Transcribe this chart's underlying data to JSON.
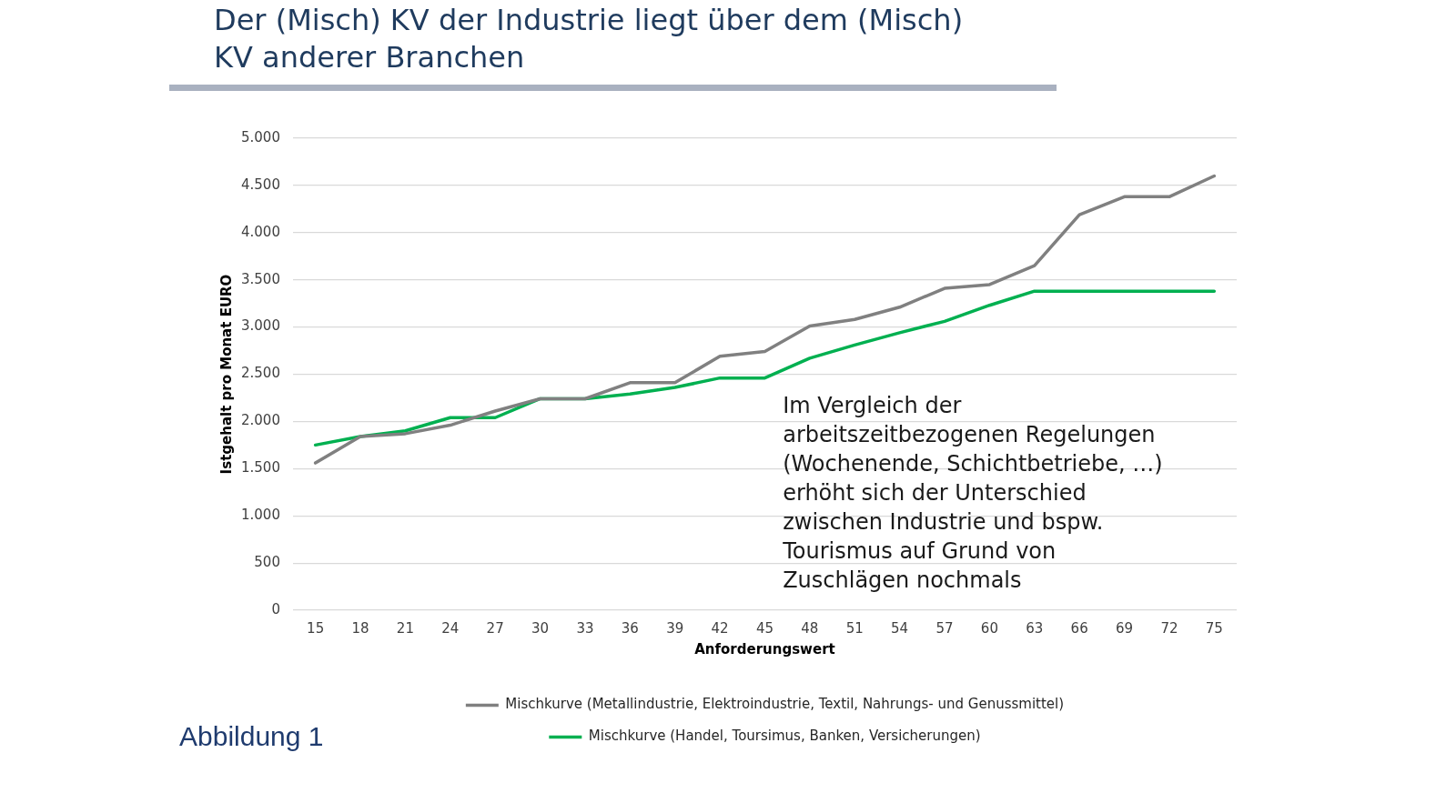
{
  "chart_data": {
    "type": "line",
    "title": "Der (Misch) KV der Industrie liegt über dem (Misch) KV anderer Branchen",
    "xlabel": "Anforderungswert",
    "ylabel": "Istgehalt pro Monat EURO",
    "categories": [
      "15",
      "18",
      "21",
      "24",
      "27",
      "30",
      "33",
      "36",
      "39",
      "42",
      "45",
      "48",
      "51",
      "54",
      "57",
      "60",
      "63",
      "66",
      "69",
      "72",
      "75"
    ],
    "series": [
      {
        "name": "Mischkurve (Metallindustrie, Elektroindustrie, Textil, Nahrungs- und Genussmittel)",
        "color": "#808080",
        "values": [
          1560,
          1840,
          1870,
          1960,
          2110,
          2240,
          2240,
          2410,
          2410,
          2690,
          2740,
          3010,
          3080,
          3210,
          3410,
          3450,
          3650,
          4190,
          4380,
          4380,
          4600
        ]
      },
      {
        "name": "Mischkurve (Handel, Toursimus, Banken, Versicherungen)",
        "color": "#00b050",
        "values": [
          1750,
          1840,
          1900,
          2040,
          2040,
          2240,
          2240,
          2290,
          2360,
          2460,
          2460,
          2670,
          2810,
          2940,
          3060,
          3230,
          3380,
          3380,
          3380,
          3380,
          3380
        ]
      }
    ],
    "ylim": [
      0,
      5000
    ],
    "yticks": [
      0,
      500,
      {
        "value": 1000,
        "label": "1.000"
      },
      {
        "value": 1500,
        "label": "1.500"
      },
      {
        "value": 2000,
        "label": "2.000"
      },
      {
        "value": 2500,
        "label": "2.500"
      },
      {
        "value": 3000,
        "label": "3.000"
      },
      {
        "value": 3500,
        "label": "3.500"
      },
      {
        "value": 4000,
        "label": "4.000"
      },
      {
        "value": 4500,
        "label": "4.500"
      },
      {
        "value": 5000,
        "label": "5.000"
      }
    ],
    "grid": "y",
    "legend": "bottom",
    "marker": "none",
    "annotations": [
      "Im Vergleich der\narbeitszeitbezogenen Regelungen\n(Wochenende, Schichtbetriebe, …)\nerhöht sich der Unterschied\nzwischen Industrie und bspw.\nTourismus auf Grund von\nZuschlägen nochmals",
      "Abbildung 1"
    ]
  }
}
